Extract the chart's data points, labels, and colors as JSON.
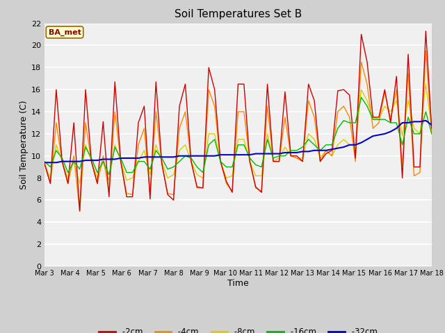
{
  "title": "Soil Temperatures Set B",
  "xlabel": "Time",
  "ylabel": "Soil Temperature (C)",
  "annotation": "BA_met",
  "ylim": [
    0,
    22
  ],
  "yticks": [
    0,
    2,
    4,
    6,
    8,
    10,
    12,
    14,
    16,
    18,
    20,
    22
  ],
  "xtick_labels": [
    "Mar 3",
    "Mar 4",
    "Mar 5",
    "Mar 6",
    "Mar 7",
    "Mar 8",
    "Mar 9",
    "Mar 10",
    "Mar 11",
    "Mar 12",
    "Mar 13",
    "Mar 14",
    "Mar 15",
    "Mar 16",
    "Mar 17",
    "Mar 18"
  ],
  "fig_bg": "#d0d0d0",
  "plot_bg": "#f0f0f0",
  "series": {
    "-2cm": {
      "color": "#cc0000",
      "lw": 1.0
    },
    "-4cm": {
      "color": "#ff8800",
      "lw": 1.0
    },
    "-8cm": {
      "color": "#ddcc00",
      "lw": 1.0
    },
    "-16cm": {
      "color": "#00bb00",
      "lw": 1.0
    },
    "-32cm": {
      "color": "#0000cc",
      "lw": 1.5
    }
  },
  "t_2cm": [
    9.3,
    7.5,
    16.0,
    9.5,
    7.5,
    13.0,
    5.0,
    16.0,
    9.5,
    7.5,
    13.1,
    6.3,
    16.7,
    9.5,
    6.3,
    6.3,
    13.0,
    14.5,
    6.1,
    16.7,
    9.3,
    6.5,
    6.0,
    14.5,
    16.5,
    9.5,
    7.2,
    7.1,
    18.0,
    16.0,
    9.5,
    7.7,
    6.7,
    16.5,
    16.5,
    9.5,
    7.2,
    6.7,
    16.5,
    9.5,
    9.5,
    15.8,
    10.0,
    10.0,
    9.5,
    16.5,
    15.0,
    9.5,
    10.2,
    10.5,
    15.9,
    16.0,
    15.5,
    9.8,
    21.0,
    18.5,
    13.5,
    13.5,
    16.0,
    13.0,
    17.2,
    8.0,
    19.2,
    9.0,
    9.0,
    21.3,
    12.5
  ],
  "t_4cm": [
    9.3,
    7.5,
    13.0,
    9.5,
    7.5,
    10.0,
    5.0,
    13.0,
    9.5,
    7.5,
    10.0,
    6.6,
    14.0,
    9.5,
    6.6,
    6.5,
    11.0,
    12.5,
    6.5,
    14.0,
    9.3,
    6.6,
    6.5,
    12.5,
    14.0,
    9.5,
    7.1,
    7.1,
    16.0,
    14.5,
    9.5,
    7.5,
    6.8,
    14.0,
    14.0,
    9.5,
    7.1,
    6.8,
    14.5,
    9.5,
    9.5,
    13.5,
    10.0,
    9.8,
    9.5,
    15.0,
    13.5,
    9.5,
    10.5,
    10.0,
    14.0,
    14.5,
    13.5,
    9.5,
    18.5,
    16.5,
    12.5,
    13.0,
    15.8,
    13.3,
    16.0,
    9.1,
    17.5,
    8.2,
    8.5,
    19.5,
    12.0
  ],
  "t_8cm": [
    9.3,
    8.0,
    11.0,
    9.5,
    8.0,
    9.5,
    7.5,
    11.0,
    9.5,
    8.0,
    9.5,
    7.8,
    11.0,
    9.5,
    7.8,
    8.0,
    9.5,
    10.5,
    8.3,
    11.0,
    9.5,
    8.0,
    8.3,
    10.5,
    11.0,
    9.5,
    8.3,
    8.0,
    12.0,
    12.0,
    9.5,
    8.0,
    8.2,
    11.5,
    11.5,
    9.5,
    8.2,
    8.2,
    12.0,
    9.5,
    9.8,
    10.8,
    10.0,
    9.8,
    9.8,
    12.0,
    11.5,
    9.8,
    10.5,
    10.0,
    11.0,
    11.5,
    11.0,
    11.0,
    16.0,
    15.0,
    13.5,
    13.3,
    14.5,
    14.0,
    15.0,
    11.8,
    15.0,
    12.5,
    12.0,
    16.5,
    12.5
  ],
  "t_16cm": [
    9.5,
    9.0,
    10.5,
    9.8,
    8.5,
    9.5,
    8.8,
    10.8,
    9.8,
    8.5,
    9.5,
    8.3,
    10.8,
    9.8,
    8.5,
    8.5,
    9.5,
    9.5,
    8.8,
    10.5,
    9.8,
    8.8,
    9.0,
    9.5,
    10.0,
    9.8,
    9.0,
    8.5,
    11.0,
    11.5,
    9.5,
    9.0,
    9.0,
    11.0,
    11.0,
    9.8,
    9.2,
    9.0,
    11.5,
    9.8,
    10.0,
    10.0,
    10.5,
    10.5,
    10.8,
    11.5,
    11.0,
    10.5,
    11.0,
    11.0,
    12.5,
    13.2,
    13.0,
    13.0,
    15.3,
    14.5,
    13.3,
    13.3,
    13.3,
    13.0,
    13.0,
    11.0,
    13.5,
    12.0,
    12.0,
    14.0,
    12.0
  ],
  "t_32cm": [
    9.4,
    9.4,
    9.4,
    9.5,
    9.5,
    9.5,
    9.5,
    9.6,
    9.6,
    9.6,
    9.7,
    9.7,
    9.7,
    9.8,
    9.8,
    9.8,
    9.8,
    9.9,
    9.9,
    9.9,
    9.9,
    9.9,
    9.9,
    10.0,
    10.0,
    10.0,
    10.0,
    10.0,
    10.0,
    10.0,
    10.1,
    10.1,
    10.1,
    10.1,
    10.1,
    10.1,
    10.2,
    10.2,
    10.2,
    10.2,
    10.2,
    10.3,
    10.3,
    10.3,
    10.4,
    10.4,
    10.5,
    10.5,
    10.5,
    10.6,
    10.7,
    10.8,
    11.0,
    11.0,
    11.2,
    11.5,
    11.8,
    11.9,
    12.0,
    12.2,
    12.5,
    13.0,
    13.0,
    13.1,
    13.1,
    13.2,
    12.8
  ]
}
